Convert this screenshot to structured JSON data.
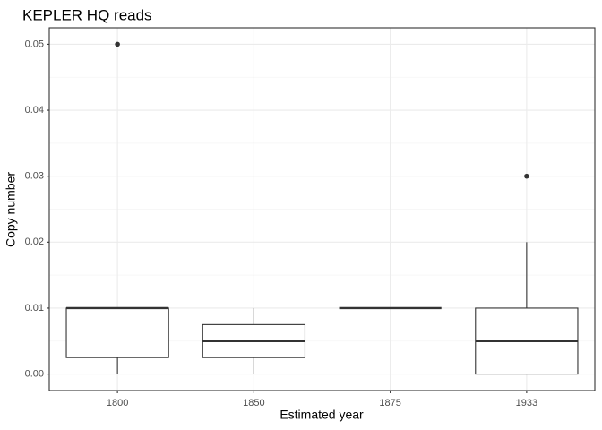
{
  "chart_data": {
    "type": "box",
    "title": "KEPLER HQ reads",
    "xlabel": "Estimated year",
    "ylabel": "Copy number",
    "categories": [
      "1800",
      "1850",
      "1875",
      "1933"
    ],
    "ylim": [
      -0.0025,
      0.0525
    ],
    "y_ticks": [
      0.0,
      0.01,
      0.02,
      0.03,
      0.04,
      0.05
    ],
    "y_tick_labels": [
      "0.00",
      "0.01",
      "0.02",
      "0.03",
      "0.04",
      "0.05"
    ],
    "boxes": [
      {
        "category": "1800",
        "whisker_low": 0.0,
        "q1": 0.0025,
        "median": 0.01,
        "q3": 0.01,
        "whisker_high": 0.01,
        "outliers": [
          0.05
        ]
      },
      {
        "category": "1850",
        "whisker_low": 0.0,
        "q1": 0.0025,
        "median": 0.005,
        "q3": 0.0075,
        "whisker_high": 0.01,
        "outliers": []
      },
      {
        "category": "1875",
        "whisker_low": 0.01,
        "q1": 0.01,
        "median": 0.01,
        "q3": 0.01,
        "whisker_high": 0.01,
        "outliers": []
      },
      {
        "category": "1933",
        "whisker_low": 0.0,
        "q1": 0.0,
        "median": 0.005,
        "q3": 0.01,
        "whisker_high": 0.02,
        "outliers": [
          0.03
        ]
      }
    ],
    "theme": "bw",
    "grid": true,
    "colors": {
      "box_outline": "#333333",
      "box_fill": "#ffffff",
      "grid_major": "#ebebeb",
      "grid_minor": "#f5f5f5",
      "panel_border": "#333333",
      "tick_label": "#4d4d4d",
      "text": "#000000"
    }
  }
}
